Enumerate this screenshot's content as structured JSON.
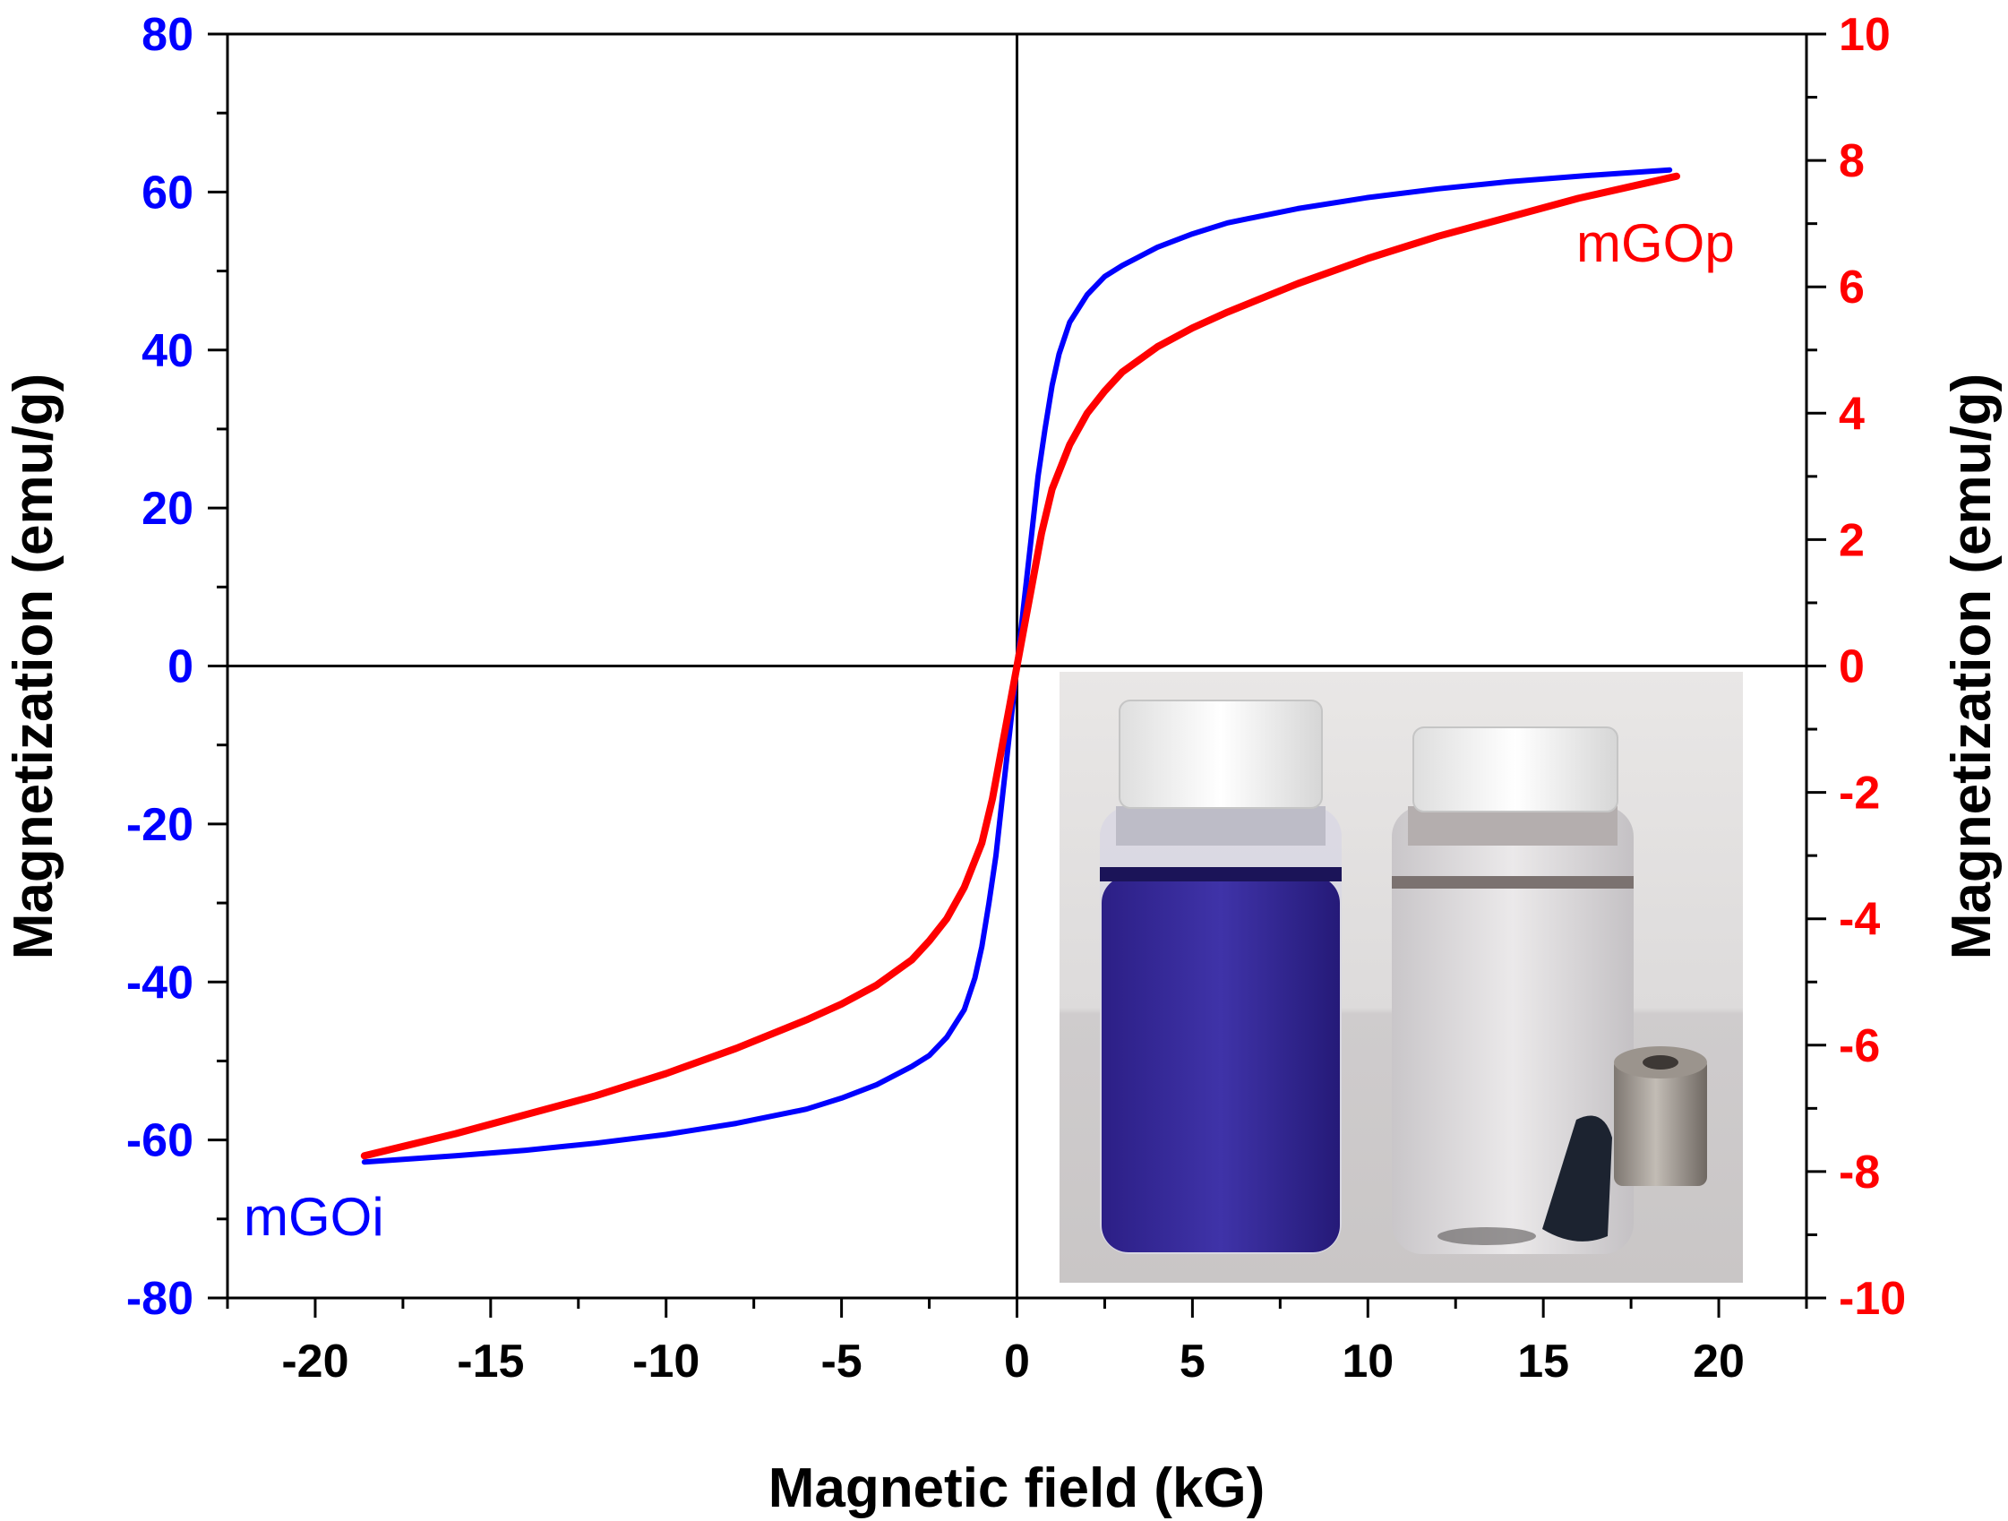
{
  "chart_data": {
    "type": "line",
    "title": "",
    "xlabel": "Magnetic field (kG)",
    "ylabel_left": "Magnetization (emu/g)",
    "ylabel_right": "Magnetization (emu/g)",
    "xlim": [
      -22.5,
      22.5
    ],
    "ylim_left": [
      -80,
      80
    ],
    "ylim_right": [
      -10,
      10
    ],
    "x_ticks": [
      -20,
      -15,
      -10,
      -5,
      0,
      5,
      10,
      15,
      20
    ],
    "y_left_ticks": [
      -80,
      -60,
      -40,
      -20,
      0,
      20,
      40,
      60,
      80
    ],
    "y_right_ticks": [
      -10,
      -8,
      -6,
      -4,
      -2,
      0,
      2,
      4,
      6,
      8,
      10
    ],
    "grid": false,
    "colors": {
      "left_axis": "#0000ff",
      "right_axis": "#ff0000",
      "axes": "#000000"
    },
    "series": [
      {
        "name": "mGOi",
        "axis": "left",
        "color": "#0000ff",
        "x": [
          -18.6,
          -16,
          -14,
          -12,
          -10,
          -8,
          -6,
          -5,
          -4,
          -3,
          -2.5,
          -2,
          -1.5,
          -1.2,
          -1.0,
          -0.8,
          -0.6,
          -0.4,
          -0.2,
          0,
          0.2,
          0.4,
          0.6,
          0.8,
          1.0,
          1.2,
          1.5,
          2,
          2.5,
          3,
          4,
          5,
          6,
          8,
          10,
          12,
          14,
          16,
          18.6
        ],
        "values": [
          -62.8,
          -62.0,
          -61.3,
          -60.4,
          -59.3,
          -57.9,
          -56.1,
          -54.7,
          -53.0,
          -50.7,
          -49.3,
          -47.0,
          -43.5,
          -39.5,
          -35.5,
          -30.0,
          -24.0,
          -16.0,
          -8.0,
          0,
          8.0,
          16.0,
          24.0,
          30.0,
          35.5,
          39.5,
          43.5,
          47.0,
          49.3,
          50.7,
          53.0,
          54.7,
          56.1,
          57.9,
          59.3,
          60.4,
          61.3,
          62.0,
          62.8
        ]
      },
      {
        "name": "mGOp",
        "axis": "right",
        "color": "#ff0000",
        "x": [
          -18.6,
          -16,
          -14,
          -12,
          -10,
          -8,
          -6,
          -5,
          -4,
          -3,
          -2.5,
          -2,
          -1.5,
          -1,
          -0.7,
          -0.4,
          -0.2,
          0,
          0.2,
          0.4,
          0.7,
          1,
          1.5,
          2,
          2.5,
          3,
          4,
          5,
          6,
          8,
          10,
          12,
          14,
          16,
          18.8
        ],
        "values": [
          -7.75,
          -7.4,
          -7.1,
          -6.8,
          -6.45,
          -6.05,
          -5.6,
          -5.35,
          -5.05,
          -4.65,
          -4.35,
          -4.0,
          -3.5,
          -2.8,
          -2.1,
          -1.2,
          -0.6,
          0,
          0.6,
          1.2,
          2.1,
          2.8,
          3.5,
          4.0,
          4.35,
          4.65,
          5.05,
          5.35,
          5.6,
          6.05,
          6.45,
          6.8,
          7.1,
          7.4,
          7.75
        ]
      }
    ],
    "annotations": [
      {
        "text": "mGOp",
        "color": "#ff0000",
        "near": "upper-right end of red curve"
      },
      {
        "text": "mGOi",
        "color": "#0000ff",
        "near": "lower-left end of blue curve"
      }
    ],
    "inset": "photo of two vials with white caps: left vial with dark blue solution, right vial clear with dark magnetic particles gathered beside a cylindrical magnet"
  }
}
